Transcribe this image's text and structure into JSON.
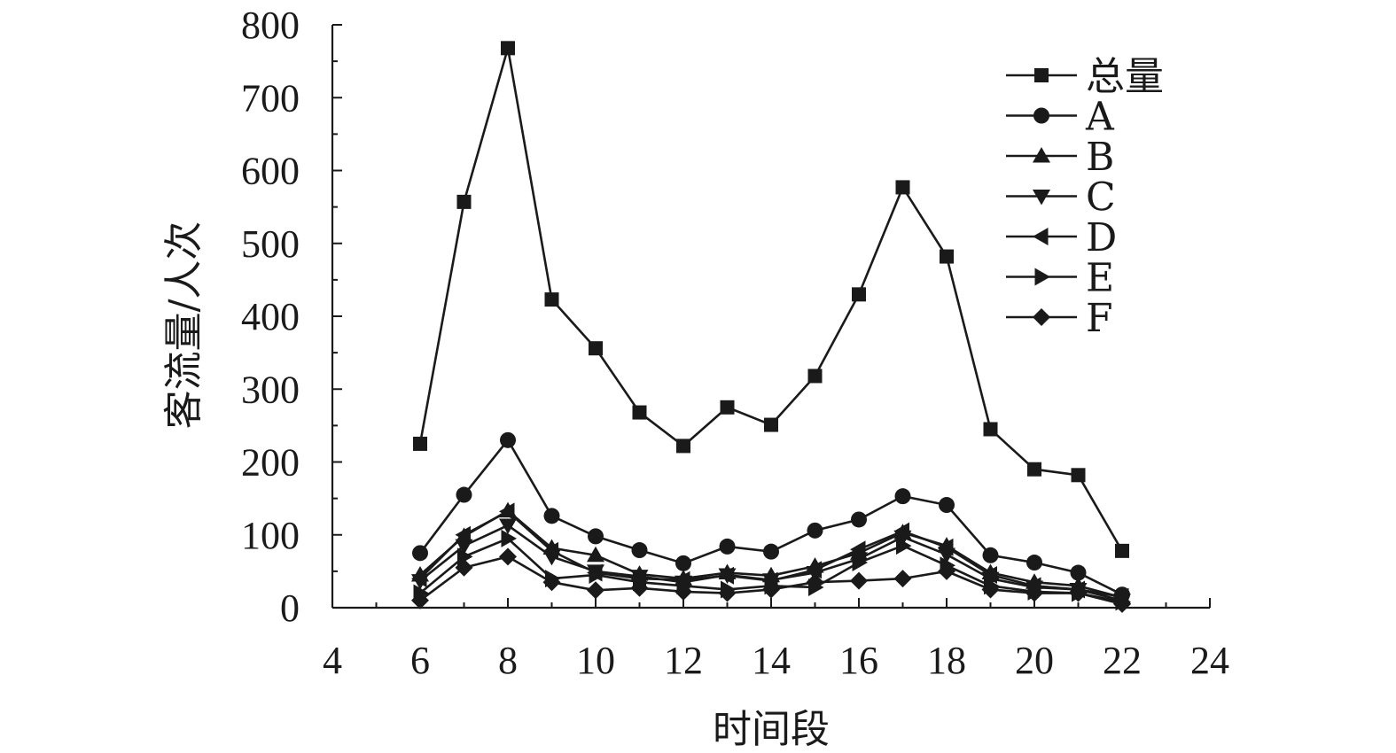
{
  "chart_data": {
    "type": "line",
    "title": "",
    "xlabel": "时间段",
    "ylabel": "客流量/人次",
    "xlim": [
      4,
      24
    ],
    "ylim": [
      0,
      800
    ],
    "xticks": [
      4,
      6,
      8,
      10,
      12,
      14,
      16,
      18,
      20,
      22,
      24
    ],
    "yticks": [
      0,
      100,
      200,
      300,
      400,
      500,
      600,
      700,
      800
    ],
    "grid": false,
    "legend_position": "top-right",
    "x": [
      6,
      7,
      8,
      9,
      10,
      11,
      12,
      13,
      14,
      15,
      16,
      17,
      18,
      19,
      20,
      21,
      22
    ],
    "series": [
      {
        "name": "总量",
        "marker": "square",
        "values": [
          225,
          557,
          768,
          423,
          356,
          268,
          222,
          275,
          251,
          318,
          430,
          577,
          482,
          245,
          190,
          182,
          78
        ]
      },
      {
        "name": "A",
        "marker": "circle",
        "values": [
          75,
          155,
          230,
          126,
          98,
          79,
          61,
          84,
          77,
          106,
          121,
          153,
          141,
          72,
          62,
          48,
          18
        ]
      },
      {
        "name": "B",
        "marker": "triangle-up",
        "values": [
          45,
          98,
          133,
          82,
          72,
          46,
          40,
          48,
          44,
          57,
          75,
          103,
          85,
          48,
          35,
          30,
          14
        ]
      },
      {
        "name": "C",
        "marker": "triangle-down",
        "values": [
          37,
          85,
          113,
          70,
          50,
          43,
          35,
          45,
          38,
          48,
          67,
          97,
          73,
          40,
          28,
          25,
          10
        ]
      },
      {
        "name": "D",
        "marker": "triangle-left",
        "values": [
          40,
          100,
          132,
          78,
          48,
          40,
          38,
          44,
          37,
          52,
          80,
          105,
          83,
          45,
          30,
          25,
          15
        ]
      },
      {
        "name": "E",
        "marker": "triangle-right",
        "values": [
          20,
          70,
          95,
          40,
          45,
          35,
          30,
          25,
          30,
          28,
          62,
          85,
          58,
          30,
          22,
          20,
          8
        ]
      },
      {
        "name": "F",
        "marker": "diamond",
        "values": [
          10,
          55,
          70,
          35,
          24,
          27,
          22,
          20,
          25,
          35,
          37,
          40,
          50,
          25,
          20,
          20,
          5
        ]
      }
    ]
  }
}
